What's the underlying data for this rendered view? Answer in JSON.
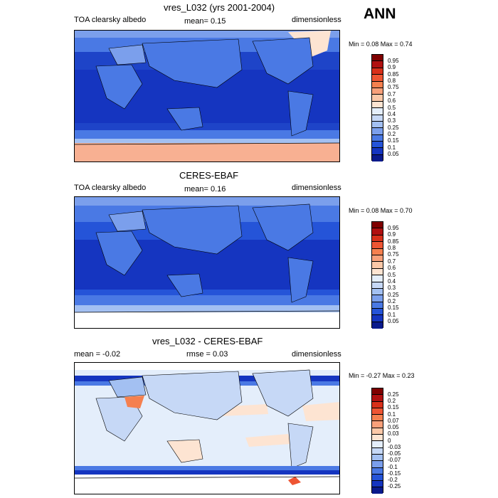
{
  "season": "ANN",
  "panels": [
    {
      "title": "vres_L032 (yrs 2001-2004)",
      "left_label": "TOA clearsky albedo",
      "center_label": "mean=  0.15",
      "right_label": "dimensionless",
      "minmax": "Min =  0.08 Max =  0.74",
      "levels": [
        "0.95",
        "0.9",
        "0.85",
        "0.8",
        "0.75",
        "0.7",
        "0.6",
        "0.5",
        "0.4",
        "0.3",
        "0.25",
        "0.2",
        "0.15",
        "0.1",
        "0.05"
      ],
      "colors": [
        "#7f0000",
        "#b01010",
        "#d8301a",
        "#ee5533",
        "#f5804f",
        "#f8a07a",
        "#fbc8a8",
        "#fde4d2",
        "#e4eefb",
        "#c6d8f6",
        "#a3c0f2",
        "#7b9fec",
        "#4a79e4",
        "#2554d8",
        "#1535c0",
        "#0a1a8c"
      ]
    },
    {
      "title": "CERES-EBAF",
      "left_label": "TOA clearsky albedo",
      "center_label": "mean=  0.16",
      "right_label": "dimensionless",
      "minmax": "Min =  0.08 Max =  0.70",
      "levels": [
        "0.95",
        "0.9",
        "0.85",
        "0.8",
        "0.75",
        "0.7",
        "0.6",
        "0.5",
        "0.4",
        "0.3",
        "0.25",
        "0.2",
        "0.15",
        "0.1",
        "0.05"
      ],
      "colors": [
        "#7f0000",
        "#b01010",
        "#d8301a",
        "#ee5533",
        "#f5804f",
        "#f8a07a",
        "#fbc8a8",
        "#fde4d2",
        "#e4eefb",
        "#c6d8f6",
        "#a3c0f2",
        "#7b9fec",
        "#4a79e4",
        "#2554d8",
        "#1535c0",
        "#0a1a8c"
      ]
    },
    {
      "title": "vres_L032 - CERES-EBAF",
      "left_label": "mean = -0.02",
      "center_label": "rmse =  0.03",
      "right_label": "dimensionless",
      "minmax": "Min = -0.27 Max =  0.23",
      "levels": [
        "0.25",
        "0.2",
        "0.15",
        "0.1",
        "0.07",
        "0.05",
        "0.03",
        "0",
        "-0.03",
        "-0.05",
        "-0.07",
        "-0.1",
        "-0.15",
        "-0.2",
        "-0.25"
      ],
      "colors": [
        "#7f0000",
        "#b01010",
        "#d8301a",
        "#ee5533",
        "#f5804f",
        "#f8a07a",
        "#fbc8a8",
        "#fde4d2",
        "#e4eefb",
        "#c6d8f6",
        "#a3c0f2",
        "#7b9fec",
        "#4a79e4",
        "#2554d8",
        "#1535c0",
        "#0a1a8c"
      ]
    }
  ]
}
